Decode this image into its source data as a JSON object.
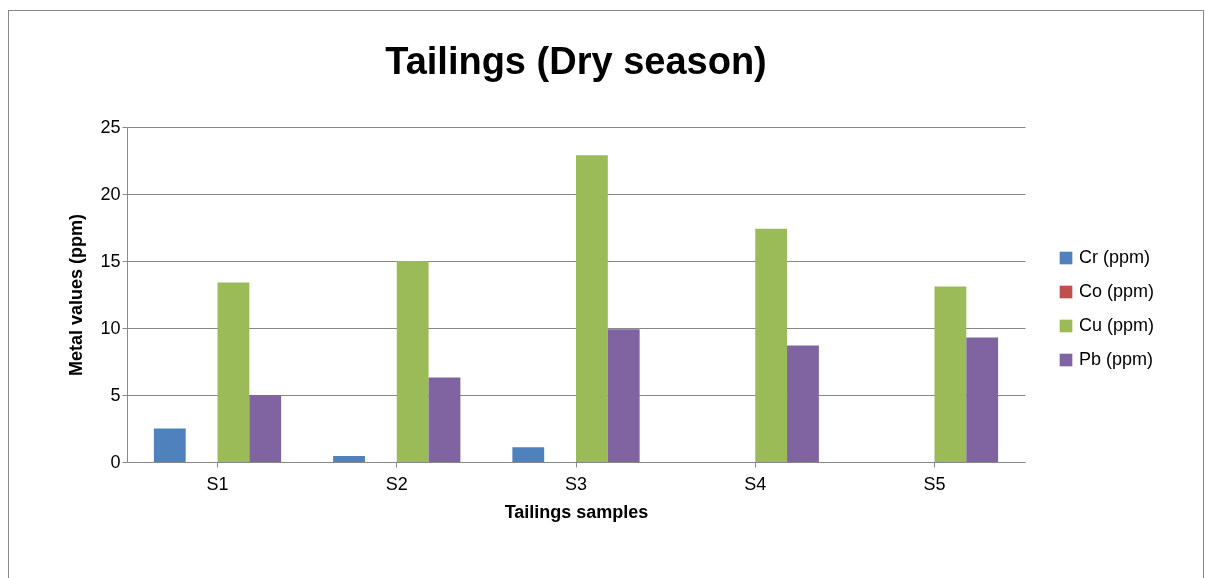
{
  "chart_data": {
    "type": "bar",
    "title": "Tailings (Dry season)",
    "xlabel": "Tailings samples",
    "ylabel": "Metal values (ppm)",
    "categories": [
      "S1",
      "S2",
      "S3",
      "S4",
      "S5"
    ],
    "series": [
      {
        "name": "Cr (ppm)",
        "color": "#4f81bd",
        "values": [
          2.5,
          0.45,
          1.1,
          0,
          0
        ]
      },
      {
        "name": "Co (ppm)",
        "color": "#c0504d",
        "values": [
          0,
          0,
          0,
          0,
          0
        ]
      },
      {
        "name": "Cu (ppm)",
        "color": "#9bbb59",
        "values": [
          13.4,
          15.0,
          22.9,
          17.4,
          13.1
        ]
      },
      {
        "name": "Pb (ppm)",
        "color": "#8064a2",
        "values": [
          5.0,
          6.3,
          9.9,
          8.7,
          9.3
        ]
      }
    ],
    "ylim": [
      0,
      25
    ],
    "yticks": [
      0,
      5,
      10,
      15,
      20,
      25
    ],
    "grid": "y",
    "legend": "right"
  }
}
